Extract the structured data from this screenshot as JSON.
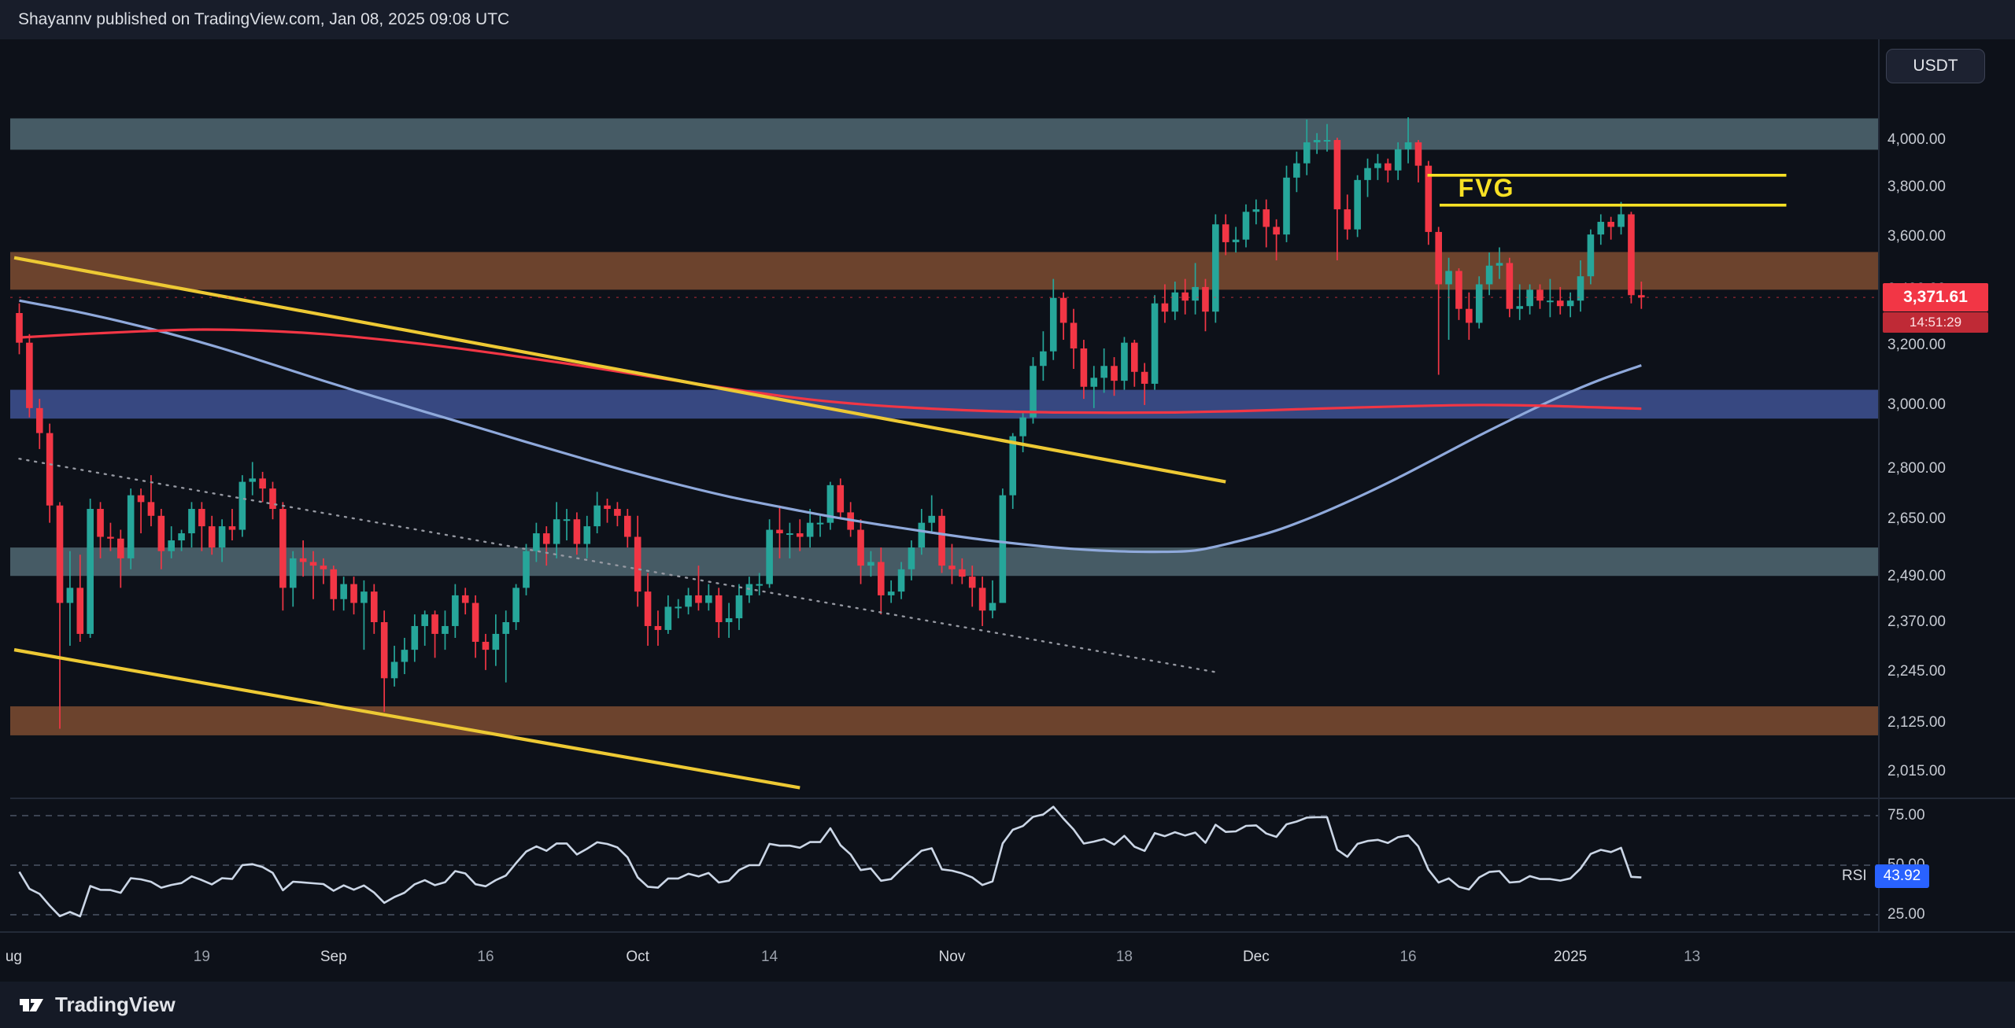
{
  "header": {
    "publish_text": "Shayannv published on TradingView.com, Jan 08, 2025 09:08 UTC"
  },
  "symbol_badge": "USDT",
  "fvg": {
    "label": "FVG"
  },
  "price_label": {
    "value": "3,371.61",
    "countdown": "14:51:29"
  },
  "rsi_badge": {
    "label": "RSI",
    "value": "43.92"
  },
  "footer": {
    "brand": "TradingView"
  },
  "colors": {
    "background": "#0d1119",
    "up": "#26a69a",
    "down": "#f23645",
    "band_gray": "#4e6570",
    "band_brown": "#7a4a30",
    "band_blue": "#3e5090",
    "trend_yellow": "#edc934",
    "fvg_yellow": "#f8e124",
    "ma_red": "#f23645",
    "ma_blue": "#8fa9db",
    "dotted_gray": "#9598a1",
    "rsi_line": "#cbd6e6",
    "rsi_level": "#4c5566",
    "separator": "#232a38",
    "rsi_value_bg": "#2962ff"
  },
  "chart_data": {
    "type": "candlestick",
    "price_scale": "log",
    "ylim": [
      1975,
      4120
    ],
    "y_ticks": [
      4000,
      3800,
      3600,
      3400,
      3200,
      3000,
      2800,
      2650,
      2490,
      2370,
      2245,
      2125,
      2015
    ],
    "time_labels": [
      {
        "label": "ug",
        "day": -0.55,
        "major": true
      },
      {
        "label": "19",
        "day": 18,
        "major": false
      },
      {
        "label": "Sep",
        "day": 31,
        "major": true
      },
      {
        "label": "16",
        "day": 46,
        "major": false
      },
      {
        "label": "Oct",
        "day": 61,
        "major": true
      },
      {
        "label": "14",
        "day": 74,
        "major": false
      },
      {
        "label": "Nov",
        "day": 92,
        "major": true
      },
      {
        "label": "18",
        "day": 109,
        "major": false
      },
      {
        "label": "Dec",
        "day": 122,
        "major": true
      },
      {
        "label": "16",
        "day": 137,
        "major": false
      },
      {
        "label": "2025",
        "day": 153,
        "major": true
      },
      {
        "label": "13",
        "day": 165,
        "major": false
      }
    ],
    "last_price": 3371.61,
    "candles": [
      [
        3315,
        3350,
        3170,
        3210
      ],
      [
        3210,
        3240,
        2960,
        2990
      ],
      [
        2990,
        3020,
        2860,
        2910
      ],
      [
        2910,
        2940,
        2640,
        2690
      ],
      [
        2690,
        2700,
        2111,
        2420
      ],
      [
        2420,
        2560,
        2310,
        2460
      ],
      [
        2460,
        2550,
        2320,
        2340
      ],
      [
        2340,
        2710,
        2330,
        2680
      ],
      [
        2680,
        2700,
        2540,
        2600
      ],
      [
        2600,
        2640,
        2560,
        2595
      ],
      [
        2595,
        2620,
        2460,
        2540
      ],
      [
        2540,
        2740,
        2510,
        2720
      ],
      [
        2720,
        2740,
        2610,
        2700
      ],
      [
        2700,
        2780,
        2630,
        2660
      ],
      [
        2660,
        2680,
        2510,
        2560
      ],
      [
        2560,
        2630,
        2540,
        2590
      ],
      [
        2590,
        2620,
        2560,
        2610
      ],
      [
        2610,
        2700,
        2570,
        2680
      ],
      [
        2680,
        2700,
        2560,
        2630
      ],
      [
        2630,
        2660,
        2550,
        2570
      ],
      [
        2570,
        2650,
        2530,
        2630
      ],
      [
        2630,
        2680,
        2590,
        2620
      ],
      [
        2620,
        2780,
        2600,
        2760
      ],
      [
        2760,
        2820,
        2720,
        2770
      ],
      [
        2770,
        2790,
        2700,
        2740
      ],
      [
        2740,
        2760,
        2650,
        2680
      ],
      [
        2680,
        2700,
        2400,
        2460
      ],
      [
        2460,
        2560,
        2410,
        2540
      ],
      [
        2540,
        2590,
        2490,
        2530
      ],
      [
        2530,
        2560,
        2430,
        2520
      ],
      [
        2520,
        2540,
        2470,
        2510
      ],
      [
        2510,
        2520,
        2400,
        2430
      ],
      [
        2430,
        2490,
        2400,
        2470
      ],
      [
        2470,
        2490,
        2390,
        2420
      ],
      [
        2420,
        2480,
        2300,
        2450
      ],
      [
        2450,
        2470,
        2340,
        2370
      ],
      [
        2370,
        2400,
        2150,
        2230
      ],
      [
        2230,
        2310,
        2210,
        2270
      ],
      [
        2270,
        2330,
        2240,
        2300
      ],
      [
        2300,
        2390,
        2270,
        2360
      ],
      [
        2360,
        2400,
        2310,
        2390
      ],
      [
        2390,
        2400,
        2280,
        2340
      ],
      [
        2340,
        2400,
        2300,
        2360
      ],
      [
        2360,
        2470,
        2330,
        2440
      ],
      [
        2440,
        2460,
        2390,
        2420
      ],
      [
        2420,
        2440,
        2280,
        2320
      ],
      [
        2320,
        2340,
        2250,
        2300
      ],
      [
        2300,
        2390,
        2260,
        2340
      ],
      [
        2340,
        2400,
        2220,
        2370
      ],
      [
        2370,
        2470,
        2350,
        2460
      ],
      [
        2460,
        2580,
        2440,
        2560
      ],
      [
        2560,
        2640,
        2530,
        2610
      ],
      [
        2610,
        2630,
        2520,
        2580
      ],
      [
        2580,
        2700,
        2540,
        2650
      ],
      [
        2650,
        2680,
        2590,
        2650
      ],
      [
        2650,
        2670,
        2550,
        2580
      ],
      [
        2580,
        2660,
        2540,
        2630
      ],
      [
        2630,
        2730,
        2610,
        2690
      ],
      [
        2690,
        2710,
        2640,
        2680
      ],
      [
        2680,
        2700,
        2630,
        2660
      ],
      [
        2660,
        2680,
        2570,
        2600
      ],
      [
        2600,
        2660,
        2410,
        2450
      ],
      [
        2450,
        2500,
        2310,
        2360
      ],
      [
        2360,
        2400,
        2310,
        2350
      ],
      [
        2350,
        2440,
        2340,
        2410
      ],
      [
        2410,
        2430,
        2380,
        2410
      ],
      [
        2410,
        2460,
        2390,
        2440
      ],
      [
        2440,
        2520,
        2400,
        2420
      ],
      [
        2420,
        2470,
        2400,
        2440
      ],
      [
        2440,
        2460,
        2330,
        2370
      ],
      [
        2370,
        2420,
        2330,
        2380
      ],
      [
        2380,
        2470,
        2350,
        2440
      ],
      [
        2440,
        2490,
        2420,
        2470
      ],
      [
        2470,
        2500,
        2440,
        2470
      ],
      [
        2470,
        2650,
        2460,
        2620
      ],
      [
        2620,
        2690,
        2540,
        2610
      ],
      [
        2610,
        2640,
        2540,
        2610
      ],
      [
        2610,
        2650,
        2560,
        2600
      ],
      [
        2600,
        2680,
        2570,
        2640
      ],
      [
        2640,
        2660,
        2600,
        2640
      ],
      [
        2640,
        2760,
        2620,
        2750
      ],
      [
        2750,
        2770,
        2650,
        2670
      ],
      [
        2670,
        2700,
        2600,
        2620
      ],
      [
        2620,
        2650,
        2470,
        2520
      ],
      [
        2520,
        2560,
        2490,
        2530
      ],
      [
        2530,
        2570,
        2390,
        2440
      ],
      [
        2440,
        2480,
        2420,
        2450
      ],
      [
        2450,
        2530,
        2430,
        2510
      ],
      [
        2510,
        2590,
        2480,
        2570
      ],
      [
        2570,
        2680,
        2550,
        2640
      ],
      [
        2640,
        2720,
        2610,
        2660
      ],
      [
        2660,
        2680,
        2500,
        2520
      ],
      [
        2520,
        2580,
        2470,
        2510
      ],
      [
        2510,
        2540,
        2470,
        2490
      ],
      [
        2490,
        2520,
        2410,
        2460
      ],
      [
        2460,
        2490,
        2360,
        2400
      ],
      [
        2400,
        2480,
        2380,
        2420
      ],
      [
        2420,
        2740,
        2420,
        2720
      ],
      [
        2720,
        2910,
        2680,
        2900
      ],
      [
        2900,
        2980,
        2850,
        2960
      ],
      [
        2960,
        3160,
        2940,
        3130
      ],
      [
        3130,
        3250,
        3080,
        3180
      ],
      [
        3180,
        3440,
        3150,
        3370
      ],
      [
        3370,
        3390,
        3220,
        3280
      ],
      [
        3280,
        3330,
        3120,
        3190
      ],
      [
        3190,
        3220,
        3020,
        3060
      ],
      [
        3060,
        3130,
        2990,
        3090
      ],
      [
        3090,
        3190,
        3040,
        3130
      ],
      [
        3130,
        3160,
        3030,
        3080
      ],
      [
        3080,
        3230,
        3050,
        3210
      ],
      [
        3210,
        3220,
        3060,
        3110
      ],
      [
        3110,
        3140,
        3000,
        3070
      ],
      [
        3070,
        3380,
        3050,
        3350
      ],
      [
        3350,
        3420,
        3280,
        3320
      ],
      [
        3320,
        3430,
        3290,
        3390
      ],
      [
        3390,
        3440,
        3310,
        3360
      ],
      [
        3360,
        3500,
        3310,
        3410
      ],
      [
        3410,
        3440,
        3250,
        3320
      ],
      [
        3320,
        3690,
        3280,
        3650
      ],
      [
        3650,
        3690,
        3530,
        3580
      ],
      [
        3580,
        3640,
        3540,
        3590
      ],
      [
        3590,
        3730,
        3560,
        3700
      ],
      [
        3700,
        3750,
        3650,
        3710
      ],
      [
        3710,
        3750,
        3560,
        3640
      ],
      [
        3640,
        3670,
        3510,
        3610
      ],
      [
        3610,
        3890,
        3580,
        3840
      ],
      [
        3840,
        3950,
        3780,
        3900
      ],
      [
        3900,
        4090,
        3850,
        3990
      ],
      [
        3990,
        4030,
        3940,
        4000
      ],
      [
        4000,
        4070,
        3950,
        4000
      ],
      [
        4000,
        4010,
        3510,
        3710
      ],
      [
        3710,
        3770,
        3590,
        3630
      ],
      [
        3630,
        3850,
        3600,
        3830
      ],
      [
        3830,
        3920,
        3760,
        3880
      ],
      [
        3880,
        3940,
        3830,
        3900
      ],
      [
        3900,
        3920,
        3820,
        3870
      ],
      [
        3870,
        3990,
        3830,
        3960
      ],
      [
        3960,
        4100,
        3900,
        3990
      ],
      [
        3990,
        4000,
        3820,
        3890
      ],
      [
        3890,
        3910,
        3570,
        3620
      ],
      [
        3620,
        3640,
        3100,
        3420
      ],
      [
        3420,
        3520,
        3220,
        3470
      ],
      [
        3470,
        3480,
        3290,
        3330
      ],
      [
        3330,
        3390,
        3220,
        3280
      ],
      [
        3280,
        3450,
        3260,
        3420
      ],
      [
        3420,
        3540,
        3380,
        3490
      ],
      [
        3490,
        3560,
        3440,
        3500
      ],
      [
        3500,
        3520,
        3300,
        3330
      ],
      [
        3330,
        3420,
        3290,
        3340
      ],
      [
        3340,
        3420,
        3310,
        3400
      ],
      [
        3400,
        3420,
        3330,
        3360
      ],
      [
        3360,
        3440,
        3300,
        3360
      ],
      [
        3360,
        3410,
        3310,
        3340
      ],
      [
        3340,
        3390,
        3300,
        3360
      ],
      [
        3360,
        3510,
        3320,
        3450
      ],
      [
        3450,
        3630,
        3420,
        3610
      ],
      [
        3610,
        3690,
        3570,
        3660
      ],
      [
        3660,
        3680,
        3590,
        3640
      ],
      [
        3640,
        3740,
        3610,
        3690
      ],
      [
        3690,
        3700,
        3350,
        3380
      ],
      [
        3380,
        3430,
        3330,
        3371.61
      ]
    ],
    "overlays": {
      "ma_red_points": [
        [
          0,
          3228
        ],
        [
          6,
          3240
        ],
        [
          12,
          3250
        ],
        [
          18,
          3256
        ],
        [
          24,
          3252
        ],
        [
          30,
          3240
        ],
        [
          36,
          3220
        ],
        [
          42,
          3196
        ],
        [
          48,
          3168
        ],
        [
          54,
          3138
        ],
        [
          60,
          3106
        ],
        [
          66,
          3074
        ],
        [
          72,
          3044
        ],
        [
          78,
          3018
        ],
        [
          84,
          3000
        ],
        [
          90,
          2988
        ],
        [
          96,
          2980
        ],
        [
          102,
          2976
        ],
        [
          108,
          2975
        ],
        [
          114,
          2976
        ],
        [
          120,
          2980
        ],
        [
          126,
          2986
        ],
        [
          132,
          2992
        ],
        [
          138,
          2997
        ],
        [
          144,
          3000
        ],
        [
          150,
          2998
        ],
        [
          155,
          2993
        ],
        [
          160,
          2988
        ]
      ],
      "ma_blue_points": [
        [
          0,
          3360
        ],
        [
          5,
          3325
        ],
        [
          10,
          3285
        ],
        [
          15,
          3240
        ],
        [
          20,
          3190
        ],
        [
          25,
          3135
        ],
        [
          30,
          3080
        ],
        [
          35,
          3028
        ],
        [
          40,
          2978
        ],
        [
          45,
          2930
        ],
        [
          50,
          2882
        ],
        [
          55,
          2836
        ],
        [
          60,
          2792
        ],
        [
          65,
          2752
        ],
        [
          70,
          2716
        ],
        [
          75,
          2686
        ],
        [
          80,
          2658
        ],
        [
          85,
          2634
        ],
        [
          90,
          2612
        ],
        [
          95,
          2592
        ],
        [
          100,
          2576
        ],
        [
          104,
          2566
        ],
        [
          108,
          2560
        ],
        [
          112,
          2558
        ],
        [
          116,
          2562
        ],
        [
          120,
          2586
        ],
        [
          124,
          2618
        ],
        [
          128,
          2662
        ],
        [
          132,
          2714
        ],
        [
          136,
          2772
        ],
        [
          140,
          2836
        ],
        [
          144,
          2902
        ],
        [
          148,
          2966
        ],
        [
          152,
          3028
        ],
        [
          156,
          3084
        ],
        [
          160,
          3132
        ]
      ],
      "dotted_trendline": [
        [
          0,
          2830
        ],
        [
          118,
          2245
        ]
      ],
      "yellow_trendlines": [
        [
          [
            -0.5,
            3520
          ],
          [
            119,
            2760
          ]
        ],
        [
          [
            -0.5,
            2300
          ],
          [
            77,
            1980
          ]
        ]
      ],
      "fvg_lines": [
        {
          "price": 3850,
          "from_day": 138.9,
          "to_day": 174.3
        },
        {
          "price": 3727,
          "from_day": 140.1,
          "to_day": 174.3
        }
      ],
      "fvg_label_pos": {
        "day": 145.2,
        "price": 3790
      },
      "bands": [
        {
          "top": 4095,
          "bottom": 3958,
          "color": "band_gray"
        },
        {
          "top": 3542,
          "bottom": 3400,
          "color": "band_brown"
        },
        {
          "top": 3050,
          "bottom": 2956,
          "color": "band_blue"
        },
        {
          "top": 2570,
          "bottom": 2492,
          "color": "band_gray"
        },
        {
          "top": 2163,
          "bottom": 2096,
          "color": "band_brown"
        }
      ]
    },
    "rsi": {
      "period": 14,
      "levels": [
        75,
        50,
        25
      ],
      "last": 43.92
    }
  }
}
